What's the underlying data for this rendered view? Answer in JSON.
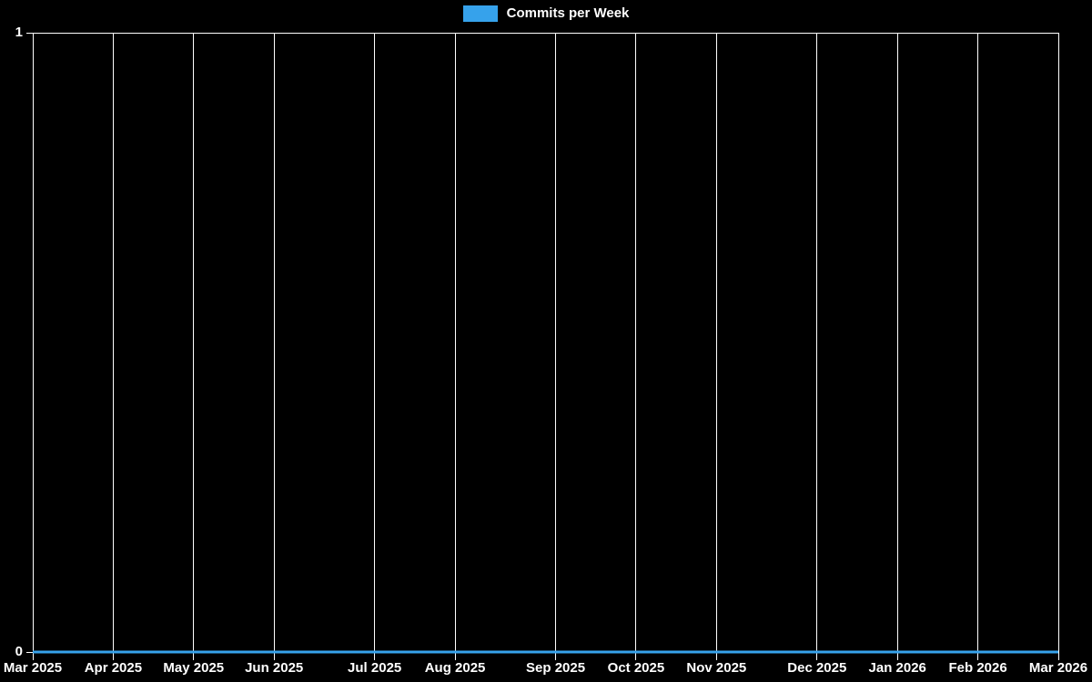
{
  "colors": {
    "background": "#000000",
    "grid": "#ffffff",
    "text": "#ffffff",
    "accent_blue": "#36a2eb"
  },
  "chart_data": {
    "type": "line",
    "title": "",
    "legend_position": "top-center",
    "x_tick_labels": [
      "Mar 2025",
      "Apr 2025",
      "May 2025",
      "Jun 2025",
      "Jul 2025",
      "Aug 2025",
      "Sep 2025",
      "Oct 2025",
      "Nov 2025",
      "Dec 2025",
      "Jan 2026",
      "Feb 2026",
      "Mar 2026"
    ],
    "x_tick_week_index": [
      0,
      4,
      8,
      12,
      17,
      21,
      26,
      30,
      34,
      39,
      43,
      47,
      51
    ],
    "weeks_total": 52,
    "y_ticks": [
      1,
      0
    ],
    "ylim": [
      0,
      1
    ],
    "grid": {
      "vertical": true,
      "horizontal": "top-only"
    },
    "series": [
      {
        "name": "Commits per Week",
        "color": "#36a2eb",
        "values": [
          0,
          0,
          0,
          0,
          0,
          0,
          0,
          0,
          0,
          0,
          0,
          0,
          0,
          0,
          0,
          0,
          0,
          0,
          0,
          0,
          0,
          0,
          0,
          0,
          0,
          0,
          0,
          0,
          0,
          0,
          0,
          0,
          0,
          0,
          0,
          0,
          0,
          0,
          0,
          0,
          0,
          0,
          0,
          0,
          0,
          0,
          0,
          0,
          0,
          0,
          0,
          0
        ]
      }
    ]
  }
}
